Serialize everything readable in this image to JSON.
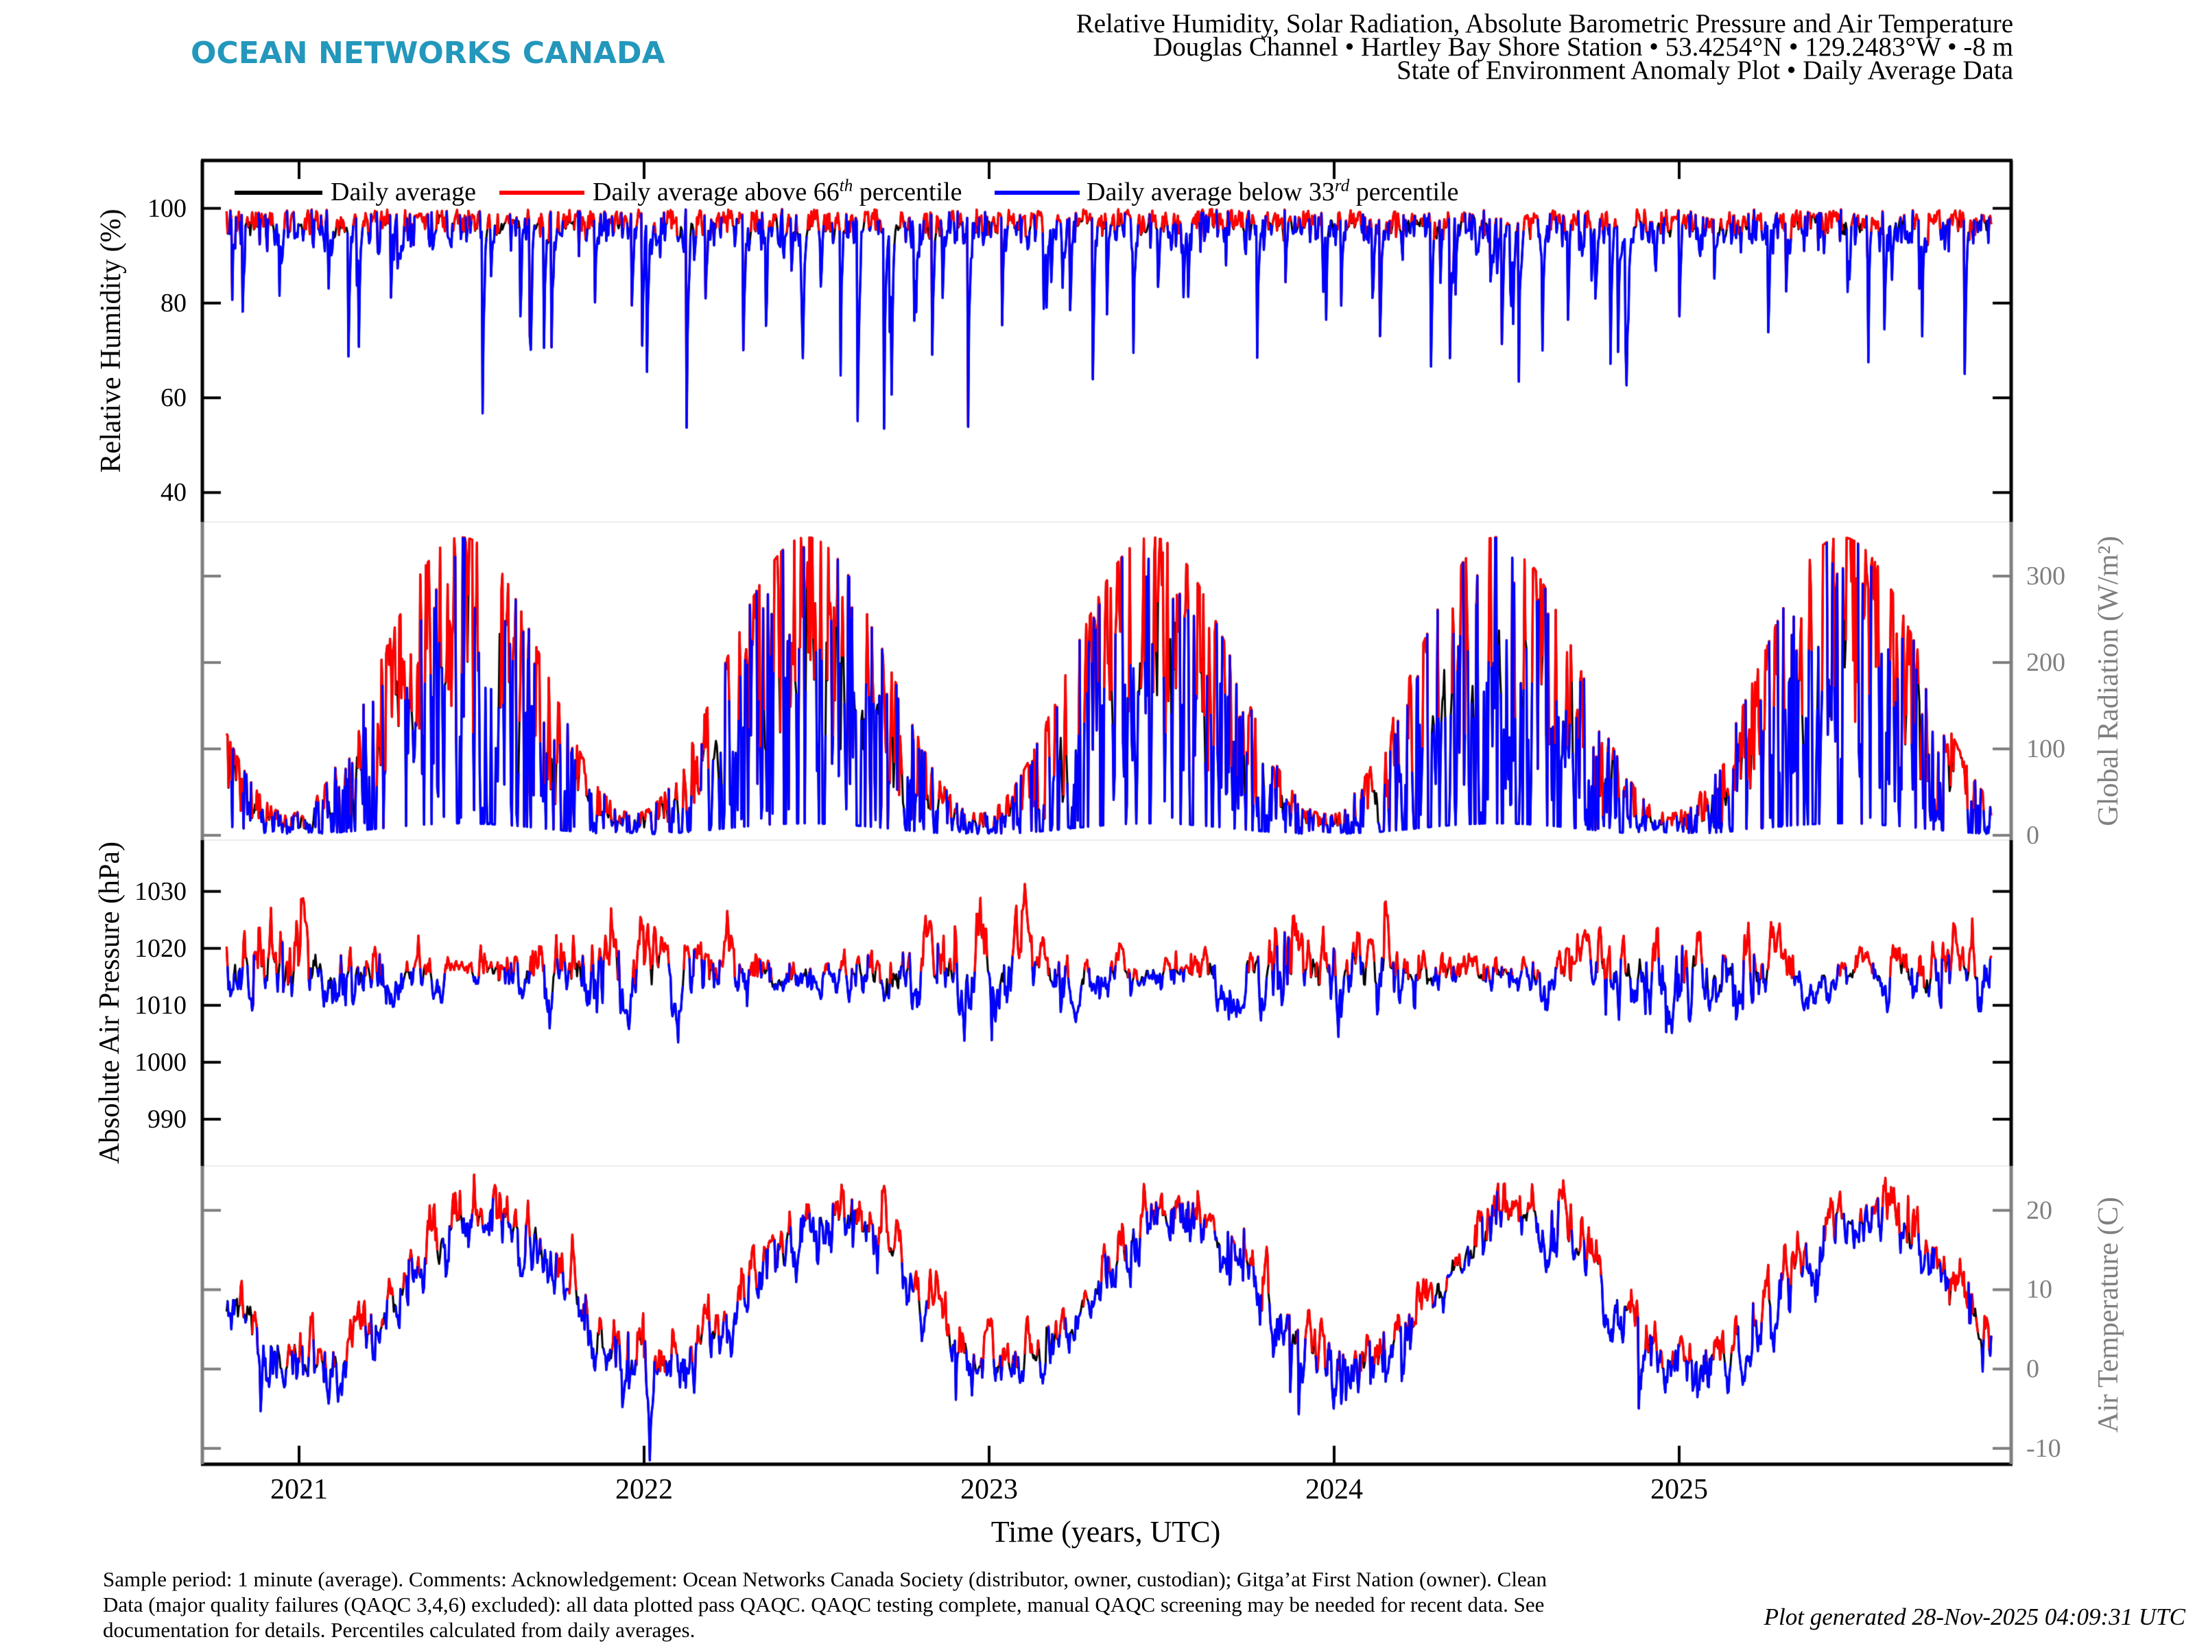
{
  "header": {
    "logo": {
      "text": "OCEAN NETWORKS CANADA",
      "color": "#2397bc"
    },
    "title_lines": [
      "Relative Humidity, Solar Radiation, Absolute Barometric Pressure and Air Temperature",
      "Douglas Channel • Hartley Bay Shore Station • 53.4254°N • 129.2483°W • -8 m",
      "State of Environment Anomaly Plot • Daily Average Data"
    ]
  },
  "legend": {
    "items": [
      {
        "color": "#000000",
        "prefix": "Daily average",
        "sup": "",
        "suffix": ""
      },
      {
        "color": "#ff0000",
        "prefix": "Daily average above 66",
        "sup": "th",
        "suffix": " percentile"
      },
      {
        "color": "#0000ff",
        "prefix": "Daily average below 33",
        "sup": "rd",
        "suffix": " percentile"
      }
    ]
  },
  "chart_data": {
    "type": "line",
    "title": "State of Environment Anomaly Plot - Daily Average Data",
    "xlabel": "Time (years, UTC)",
    "x_start_year": 2020.79,
    "x_end_year": 2025.906,
    "sample_interval_days": 1,
    "grid": false,
    "seed": 20251128,
    "percentile_rule": {
      "red_above_percentile": 66,
      "blue_below_percentile": 33,
      "climatology_window_days": 15,
      "note": "Percentiles calculated from daily averages per day-of-year climatology"
    },
    "x_ticks": [
      {
        "label": "2021",
        "year": 2021
      },
      {
        "label": "2022",
        "year": 2022
      },
      {
        "label": "2023",
        "year": 2023
      },
      {
        "label": "2024",
        "year": 2024
      },
      {
        "label": "2025",
        "year": 2025
      }
    ],
    "panels": [
      {
        "ylabel": "Relative Humidity (%)",
        "side": "left",
        "axis_color": "#000000",
        "ylim": [
          33.8,
          110.1
        ],
        "yticks": [
          {
            "label": "100",
            "value": 100
          },
          {
            "label": "80",
            "value": 80
          },
          {
            "label": "60",
            "value": 60
          },
          {
            "label": "40",
            "value": 40
          }
        ],
        "observed_range": [
          36,
          100
        ],
        "typical_value": 96,
        "model": {
          "kind": "humidity",
          "base": 100.2,
          "ar_coef": 0.55,
          "ar_sigma": 3.5,
          "abs_scale": 0.9,
          "dip_prob": 0.05,
          "dip_min": 12,
          "dip_max": 58,
          "min": 34,
          "max": 100
        }
      },
      {
        "ylabel": "Global Radiation (W/m²)",
        "side": "right",
        "axis_color": "#7f7f7f",
        "ylim": [
          -5.6,
          362.7
        ],
        "yticks": [
          {
            "label": "300",
            "value": 300
          },
          {
            "label": "200",
            "value": 200
          },
          {
            "label": "100",
            "value": 100
          },
          {
            "label": "0",
            "value": 0
          }
        ],
        "observed_range": [
          0,
          350
        ],
        "seasonal": {
          "summer_peak": 345,
          "winter_min": 5,
          "peak_day_of_year": 172
        },
        "model": {
          "kind": "radiation",
          "mean_clear": 185,
          "seasonal_amp": 160,
          "peak_doy": 172,
          "cloud_ar": 0.45,
          "cloud_sigma": 0.42,
          "cloud_base": 0.52,
          "floor": 1.5
        }
      },
      {
        "ylabel": "Absolute Air Pressure (hPa)",
        "side": "left",
        "axis_color": "#000000",
        "ylim": [
          981.8,
          1039.0
        ],
        "yticks": [
          {
            "label": "1030",
            "value": 1030
          },
          {
            "label": "1020",
            "value": 1020
          },
          {
            "label": "1010",
            "value": 1010
          },
          {
            "label": "1000",
            "value": 1000
          },
          {
            "label": "990",
            "value": 990
          }
        ],
        "observed_range": [
          985,
          1036
        ],
        "typical_value": 1016,
        "model": {
          "kind": "pressure",
          "base": 1015.5,
          "ar_coef": 0.8,
          "sigma_winter": 4.6,
          "sigma_summer": 1.9,
          "min": 984,
          "max": 1036
        }
      },
      {
        "ylabel": "Air Temperature (C)",
        "side": "right",
        "axis_color": "#7f7f7f",
        "ylim": [
          -12.0,
          25.6
        ],
        "yticks": [
          {
            "label": "20",
            "value": 20
          },
          {
            "label": "10",
            "value": 10
          },
          {
            "label": "0",
            "value": 0
          },
          {
            "label": "-10",
            "value": -10
          }
        ],
        "observed_range": [
          -11,
          24
        ],
        "seasonal": {
          "summer_peak": 21,
          "winter_min": -10,
          "peak_day_of_year": 200
        },
        "model": {
          "kind": "temperature",
          "mean": 9.4,
          "seasonal_amp": 9.2,
          "peak_doy": 200,
          "ar_coef": 0.72,
          "ar_sigma": 1.65,
          "cold_snap_prob": 0.018,
          "heat_spike_prob": 0.02,
          "min": -11.5,
          "max": 24.5
        }
      }
    ]
  },
  "footer": {
    "lines": [
      "Sample period: 1 minute (average). Comments: Acknowledgement: Ocean Networks Canada Society (distributor, owner, custodian); Gitga’at First Nation (owner). Clean",
      "Data (major quality failures (QAQC 3,4,6) excluded): all data plotted pass QAQC. QAQC testing complete, manual QAQC screening may be needed for recent data. See",
      "documentation for details. Percentiles calculated from daily averages."
    ],
    "generated": "Plot generated 28-Nov-2025 04:09:31 UTC"
  }
}
